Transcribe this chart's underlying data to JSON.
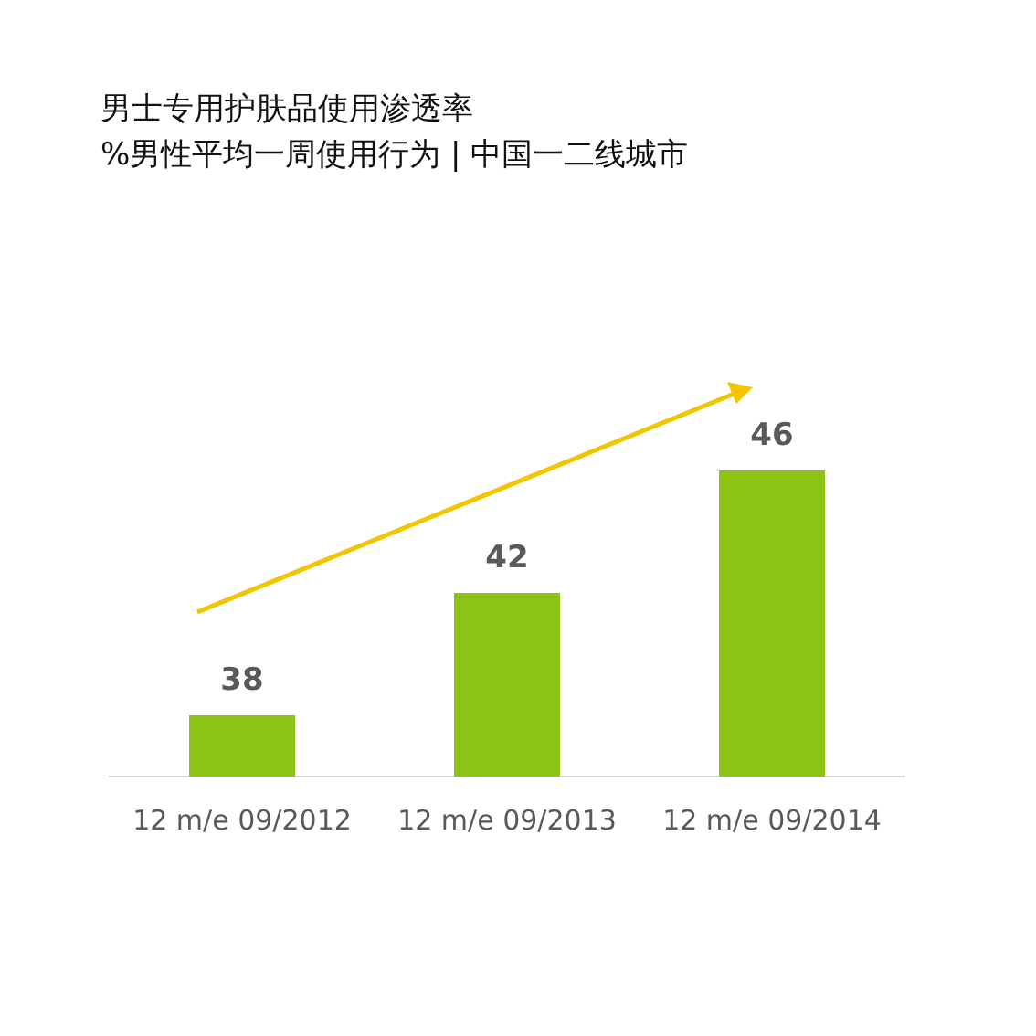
{
  "chart_data": {
    "type": "bar",
    "title": "男士专用护肤品使用渗透率",
    "subtitle": "%男性平均一周使用行为 | 中国一二线城市",
    "categories": [
      "12 m/e 09/2012",
      "12 m/e 09/2013",
      "12 m/e 09/2014"
    ],
    "values": [
      38,
      42,
      46
    ],
    "color": "#8cc414",
    "data_labels": true,
    "grid": false,
    "legend": false,
    "tick_labels": "x"
  }
}
